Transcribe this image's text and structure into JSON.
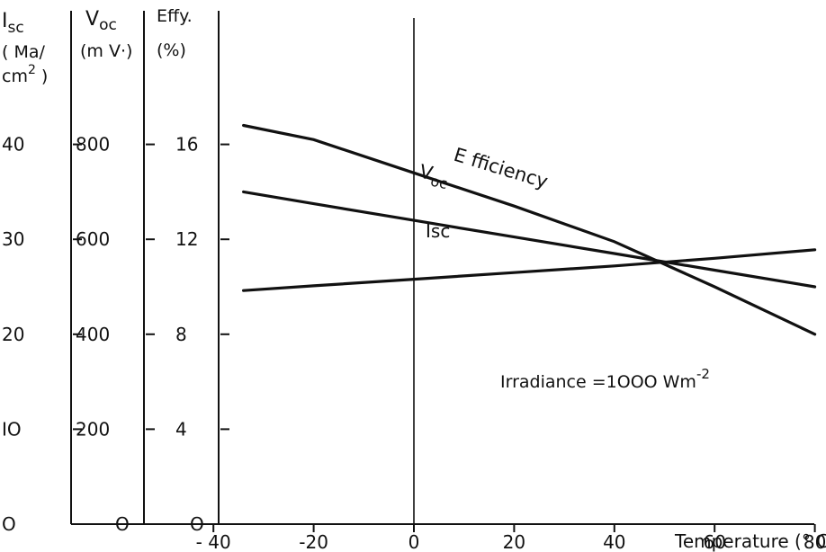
{
  "chart_data": {
    "type": "line",
    "title": "",
    "x": [
      -34,
      -20,
      0,
      20,
      40,
      60,
      80
    ],
    "xlabel": "Temperature (° C)",
    "xticks": [
      "- 40",
      "-20",
      "0",
      "20",
      "40",
      "60",
      "80"
    ],
    "xlim": [
      -50,
      80
    ],
    "y_axes": [
      {
        "header": [
          "I",
          "sc",
          "( Ma/",
          "cm",
          "2",
          " )"
        ],
        "ticks": [
          "O",
          "IO",
          "20",
          "30",
          "40"
        ],
        "tick_values": [
          0,
          10,
          20,
          30,
          40
        ],
        "ylim": [
          0,
          50
        ]
      },
      {
        "header": [
          "V",
          "oc",
          "(m V·)"
        ],
        "ticks": [
          "O",
          "200",
          "400",
          "600",
          "800"
        ],
        "tick_values": [
          0,
          200,
          400,
          600,
          800
        ],
        "ylim": [
          0,
          1000
        ]
      },
      {
        "header": [
          "Effy.",
          "(%)"
        ],
        "ticks": [
          "O",
          "4",
          "8",
          "12",
          "16"
        ],
        "tick_values": [
          0,
          4,
          8,
          12,
          16
        ],
        "ylim": [
          0,
          20
        ]
      }
    ],
    "series": [
      {
        "name": "Efficiency",
        "axis": 2,
        "values": [
          16.8,
          16.2,
          14.8,
          13.4,
          11.9,
          10.0,
          8.0
        ]
      },
      {
        "name": "Voc",
        "axis": 1,
        "values": [
          700,
          675,
          640,
          605,
          570,
          535,
          500
        ]
      },
      {
        "name": "Isc",
        "axis": 0,
        "values": [
          24.6,
          25.1,
          25.8,
          26.5,
          27.2,
          28.0,
          28.9
        ]
      }
    ],
    "series_labels": {
      "efficiency": "E fficiency",
      "voc": [
        "V",
        "oc"
      ],
      "isc": "Isc"
    },
    "annotation": [
      "Irradiance =1OOO Wm",
      "-2"
    ],
    "grid": false,
    "legend": "none"
  }
}
